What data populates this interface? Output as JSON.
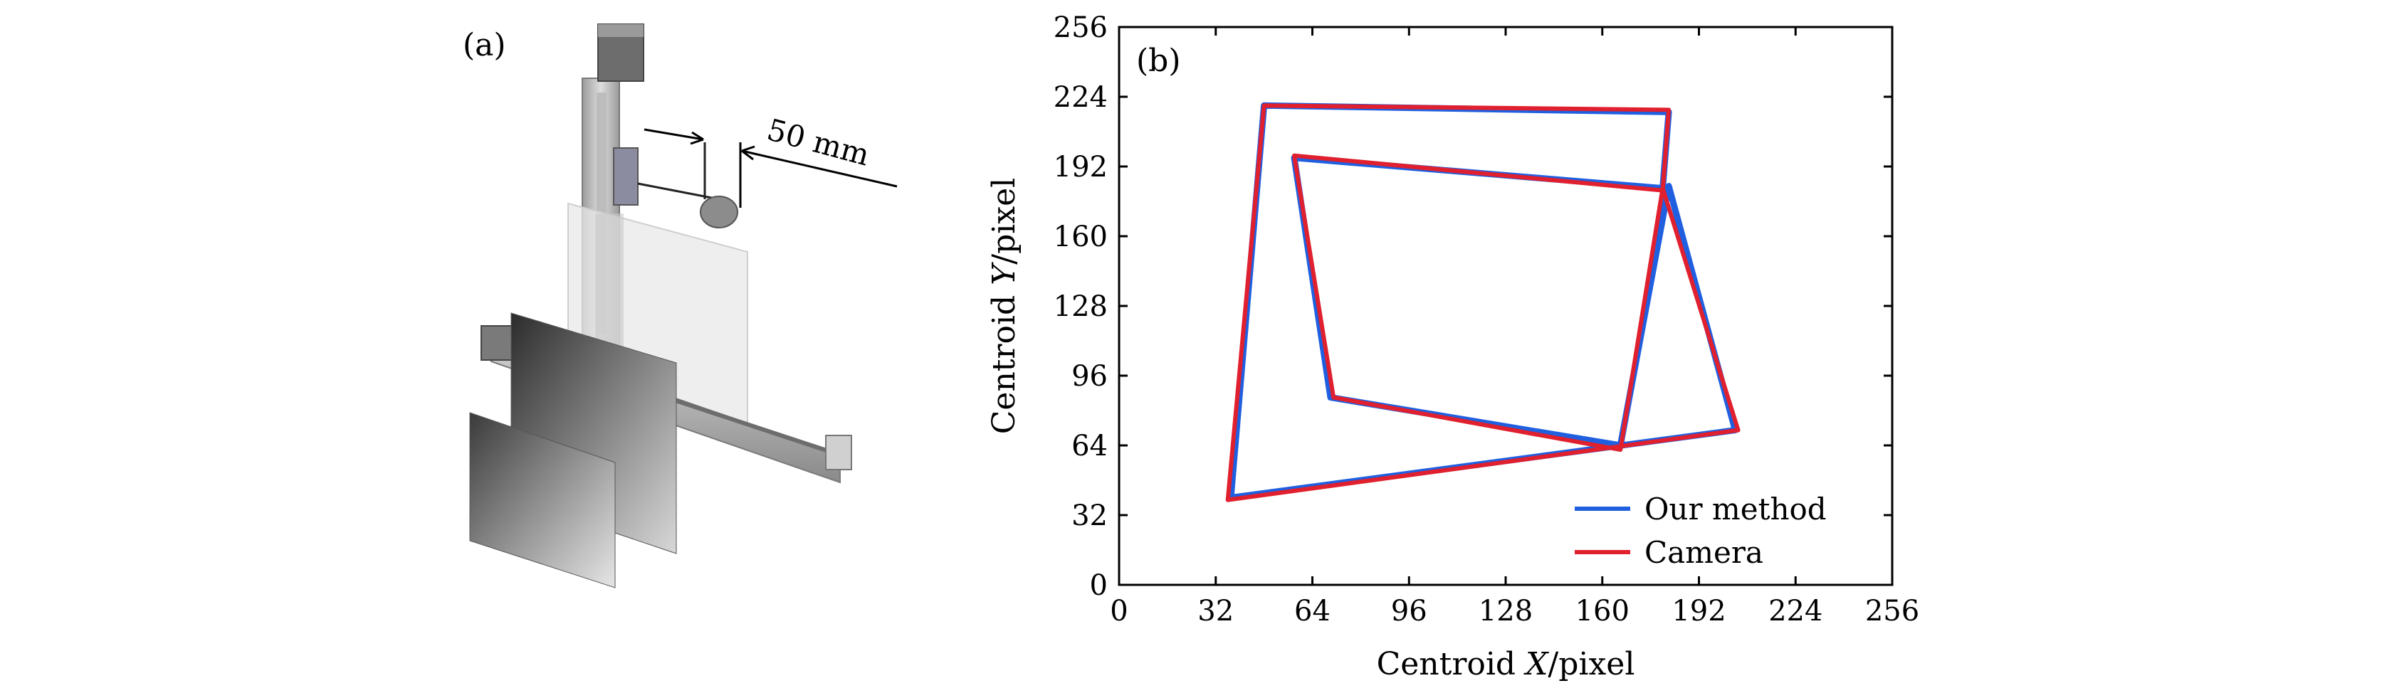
{
  "panel_a": {
    "label": "(a)",
    "dimension_label": "50 mm"
  },
  "chart_data": {
    "type": "line",
    "panel_label": "(b)",
    "title": "",
    "xlabel": "Centroid X/pixel",
    "ylabel": "Centroid Y/pixel",
    "xlabel_parts": [
      "Centroid ",
      "X",
      "/pixel"
    ],
    "ylabel_parts": [
      "Centroid ",
      "Y",
      "/pixel"
    ],
    "xlim": [
      0,
      256
    ],
    "ylim": [
      0,
      256
    ],
    "xticks": [
      0,
      32,
      64,
      96,
      128,
      160,
      192,
      224,
      256
    ],
    "yticks": [
      0,
      32,
      64,
      96,
      128,
      160,
      192,
      224,
      256
    ],
    "grid": false,
    "legend_position": "bottom-right",
    "series": [
      {
        "name": "Our method",
        "color": "#1f5fe0",
        "x": [
          48,
          182,
          180,
          58,
          70,
          166,
          182,
          204,
          37,
          48
        ],
        "y": [
          220,
          217,
          182,
          196,
          86,
          64,
          183,
          71,
          40,
          220
        ]
      },
      {
        "name": "Camera",
        "color": "#e0202e",
        "x": [
          48,
          182,
          180,
          58,
          71,
          166,
          180,
          205,
          36,
          48
        ],
        "y": [
          220,
          218,
          181,
          197,
          86,
          62,
          182,
          71,
          39,
          220
        ]
      }
    ]
  }
}
